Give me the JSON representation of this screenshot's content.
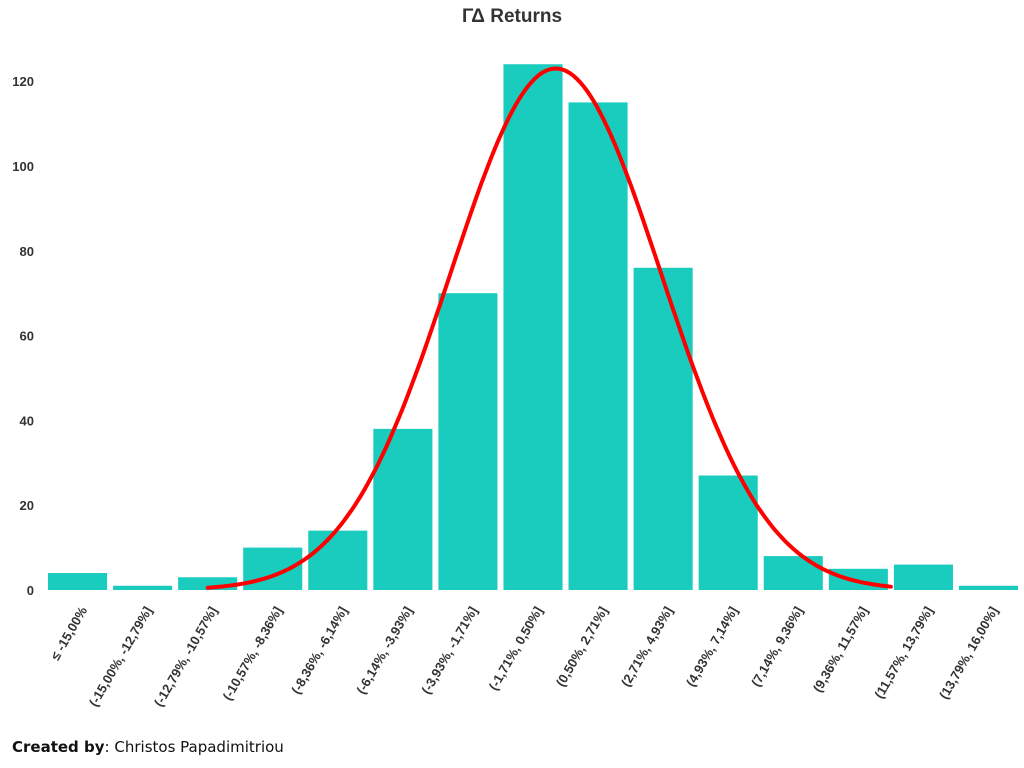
{
  "chart_data": {
    "type": "bar",
    "title": "ΓΔ Returns",
    "categories": [
      "≤ -15,00%",
      "(-15,00%, -12,79%]",
      "(-12,79%, -10,57%]",
      "(-10,57%, -8,36%]",
      "(-8,36%, -6,14%]",
      "(-6,14%, -3,93%]",
      "(-3,93%, -1,71%]",
      "(-1,71%, 0,50%]",
      "(0,50%, 2,71%]",
      "(2,71%, 4,93%]",
      "(4,93%, 7,14%]",
      "(7,14%, 9,36%]",
      "(9,36%, 11,57%]",
      "(11,57%, 13,79%]",
      "(13,79%, 16,00%]"
    ],
    "series": [
      {
        "values": [
          4,
          1,
          3,
          10,
          14,
          38,
          70,
          124,
          115,
          76,
          27,
          8,
          5,
          6,
          1
        ]
      }
    ],
    "overlay_curve": {
      "type": "normal-fit",
      "color": "#ff0000",
      "peak": 123,
      "mean_category_index": 7.35,
      "std_categories": 1.62,
      "from_category_index": 2,
      "to_category_index": 12.5
    },
    "ylim": [
      0,
      125
    ],
    "yticks": [
      0,
      20,
      40,
      60,
      80,
      100,
      120
    ],
    "xlabel": "",
    "ylabel": "",
    "grid": false,
    "legend": "none",
    "colors": {
      "bar": "#19ccbd",
      "curve": "#ff0000",
      "text": "#333333"
    }
  },
  "footer": {
    "credit_label": "Created by",
    "credit_sep": ":",
    "credit_name": "Christos Papadimitriou"
  }
}
